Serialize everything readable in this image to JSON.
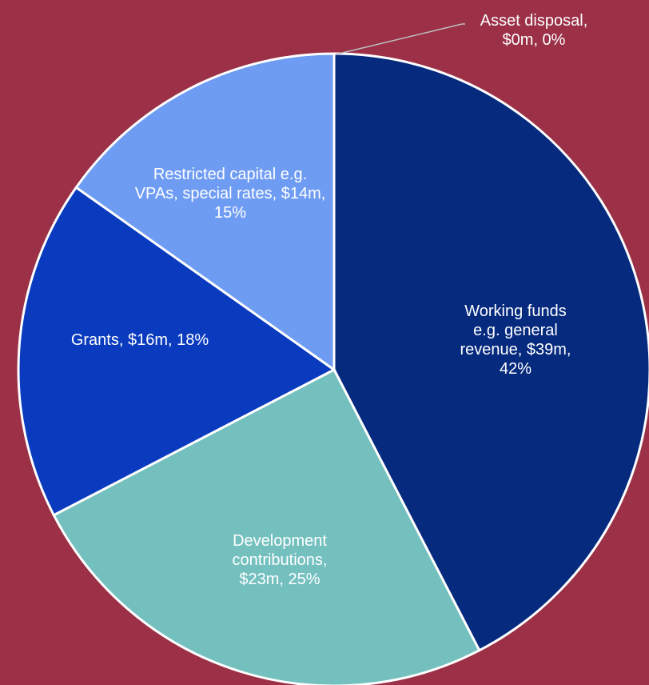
{
  "chart_data": {
    "type": "pie",
    "values": [
      39,
      23,
      16,
      14,
      0
    ],
    "value_labels": [
      "Working funds e.g. general revenue, $39m, 42%",
      "Development contributions, $23m, 25%",
      "Grants, $16m, 18%",
      "Restricted capital e.g. VPAs, special rates, $14m, 15%",
      "Asset disposal, $0m, 0%"
    ],
    "colors": [
      "#062a7e",
      "#74c0bf",
      "#0a3bbf",
      "#6f9cf3",
      "#d9d9d9"
    ]
  }
}
